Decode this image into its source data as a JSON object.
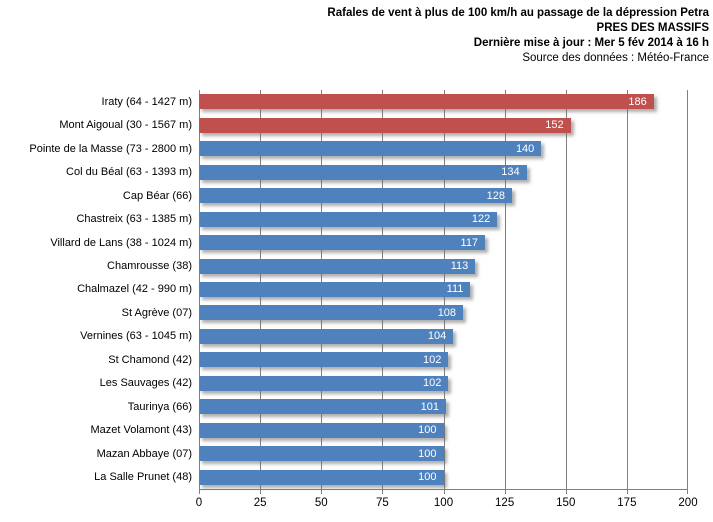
{
  "chart_data": {
    "type": "bar",
    "orientation": "horizontal",
    "title": "Rafales de vent à plus de 100 km/h au passage de la dépression Petra",
    "subtitle": "PRES DES MASSIFS",
    "updated": "Dernière mise à jour : Mer 5 fév 2014 à 16 h",
    "source": "Source des données : Météo-France",
    "categories": [
      "Iraty (64 - 1427 m)",
      "Mont Aigoual (30 - 1567 m)",
      "Pointe de la Masse (73 - 2800 m)",
      "Col du Béal (63 - 1393 m)",
      "Cap Béar (66)",
      "Chastreix (63 - 1385 m)",
      "Villard de Lans (38 - 1024 m)",
      "Chamrousse (38)",
      "Chalmazel (42 - 990 m)",
      "St Agrève (07)",
      "Vernines (63 - 1045 m)",
      "St Chamond (42)",
      "Les Sauvages (42)",
      "Taurinya (66)",
      "Mazet Volamont (43)",
      "Mazan Abbaye (07)",
      "La Salle Prunet (48)"
    ],
    "values": [
      186,
      152,
      140,
      134,
      128,
      122,
      117,
      113,
      111,
      108,
      104,
      102,
      102,
      101,
      100,
      100,
      100
    ],
    "highlight_indices": [
      0,
      1
    ],
    "colors": {
      "highlight": "#C0504D",
      "default": "#4F81BD",
      "gridline": "#808080",
      "axis_line": "#808080",
      "value_label": "#FFFFFF",
      "text": "#000000"
    },
    "xlim": [
      0,
      200
    ],
    "xticks": [
      0,
      25,
      50,
      75,
      100,
      125,
      150,
      175,
      200
    ],
    "grid": "vertical",
    "legend": "none",
    "value_labels": "inside-end",
    "xlabel": "",
    "ylabel": ""
  }
}
